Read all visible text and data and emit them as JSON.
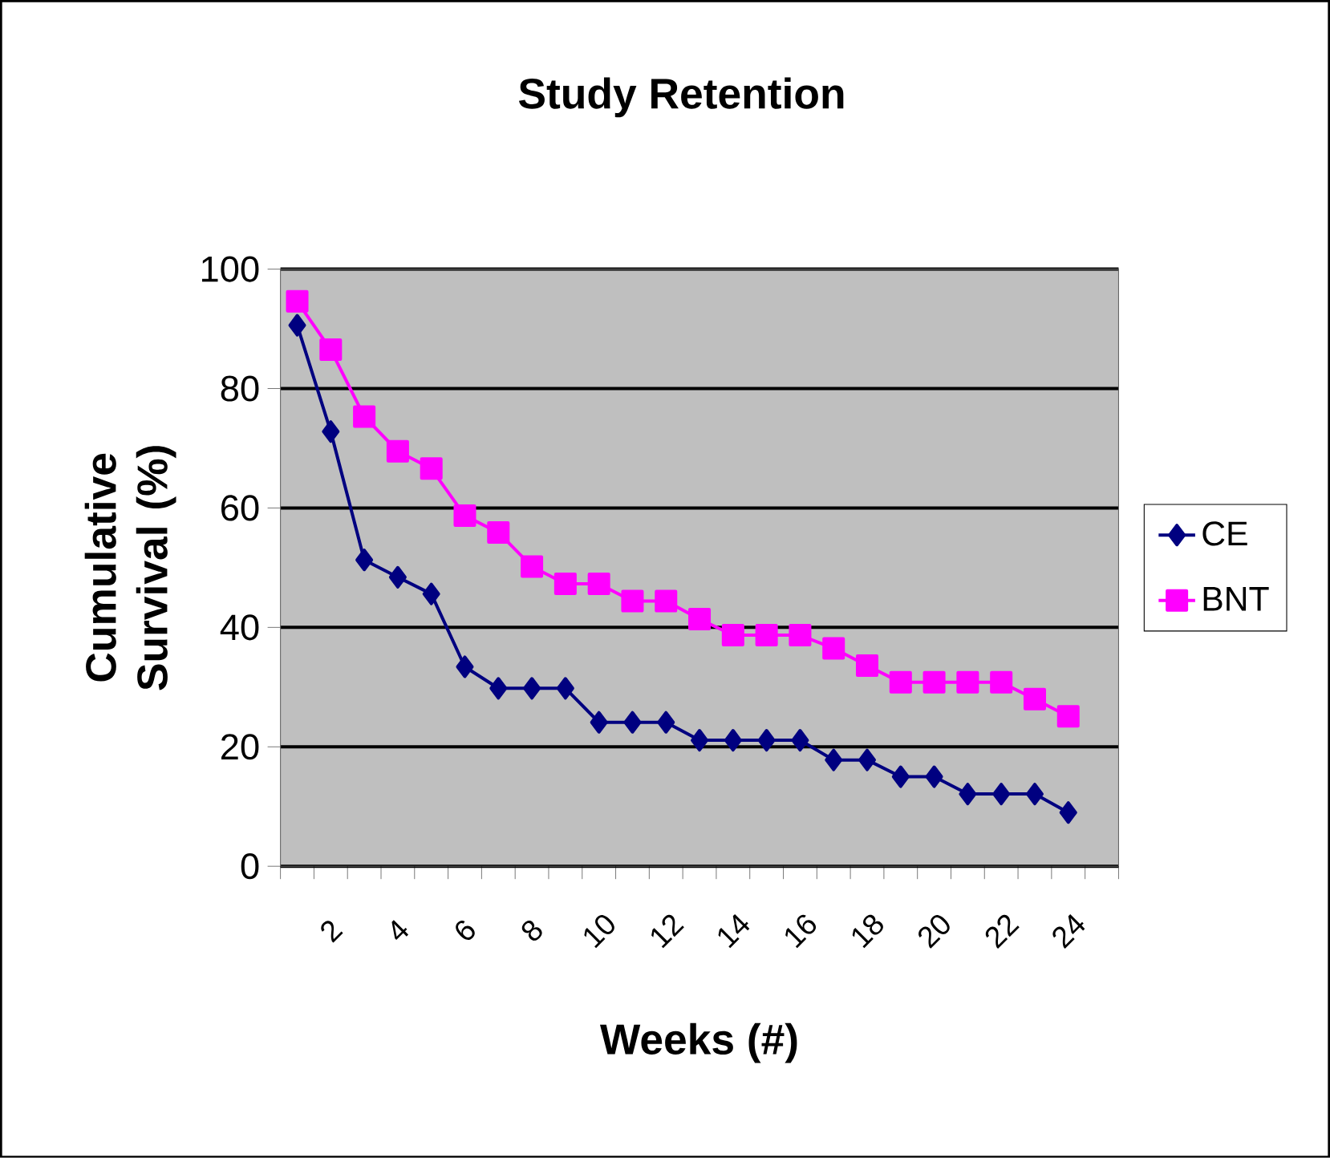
{
  "chart_data": {
    "type": "line",
    "title": "Study Retention",
    "xlabel": "Weeks (#)",
    "ylabel": "Cumulative Survival (%)",
    "categories": [
      null,
      "2",
      null,
      "4",
      null,
      "6",
      null,
      "8",
      null,
      "10",
      null,
      "12",
      null,
      "14",
      null,
      "16",
      null,
      "18",
      null,
      "20",
      null,
      "22",
      null,
      "24",
      null
    ],
    "series": [
      {
        "name": "CE",
        "color": "#000080",
        "marker": "diamond",
        "values": [
          90.6,
          72.8,
          51.3,
          48.4,
          45.6,
          33.4,
          29.8,
          29.8,
          29.8,
          24.1,
          24.1,
          24.1,
          21.1,
          21.1,
          21.1,
          21.1,
          17.8,
          17.8,
          15.0,
          15.0,
          12.1,
          12.1,
          12.1,
          9.0,
          null
        ]
      },
      {
        "name": "BNT",
        "color": "#ff00ff",
        "marker": "square",
        "values": [
          94.6,
          86.5,
          75.3,
          69.5,
          66.6,
          58.7,
          55.9,
          50.2,
          47.3,
          47.3,
          44.4,
          44.4,
          41.4,
          38.7,
          38.7,
          38.7,
          36.5,
          33.6,
          30.8,
          30.8,
          30.8,
          30.8,
          28.0,
          25.1,
          null
        ]
      }
    ],
    "ylim": [
      0,
      100
    ],
    "yticks": [
      0,
      20,
      40,
      60,
      80,
      100
    ],
    "grid": "y",
    "legend": "right"
  }
}
